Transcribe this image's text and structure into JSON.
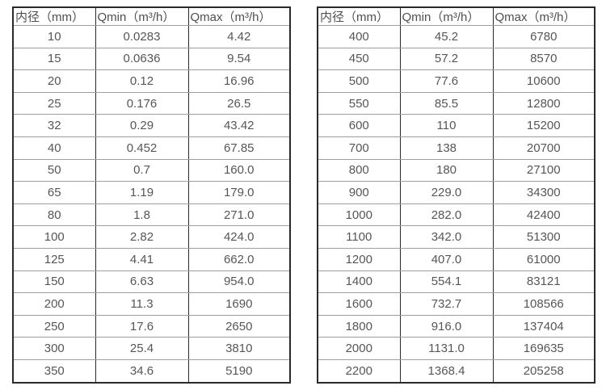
{
  "page": {
    "background": "#ffffff",
    "text_color": "#565656",
    "grid_vertical_color": "#2a2a2a",
    "grid_horizontal_color": "#9e9e9e"
  },
  "columns": [
    "内径（mm）",
    "Qmin（m³/h）",
    "Qmax（m³/h）"
  ],
  "left_table": {
    "rows": [
      [
        "10",
        "0.0283",
        "4.42"
      ],
      [
        "15",
        "0.0636",
        "9.54"
      ],
      [
        "20",
        "0.12",
        "16.96"
      ],
      [
        "25",
        "0.176",
        "26.5"
      ],
      [
        "32",
        "0.29",
        "43.42"
      ],
      [
        "40",
        "0.452",
        "67.85"
      ],
      [
        "50",
        "0.7",
        "160.0"
      ],
      [
        "65",
        "1.19",
        "179.0"
      ],
      [
        "80",
        "1.8",
        "271.0"
      ],
      [
        "100",
        "2.82",
        "424.0"
      ],
      [
        "125",
        "4.41",
        "662.0"
      ],
      [
        "150",
        "6.63",
        "954.0"
      ],
      [
        "200",
        "11.3",
        "1690"
      ],
      [
        "250",
        "17.6",
        "2650"
      ],
      [
        "300",
        "25.4",
        "3810"
      ],
      [
        "350",
        "34.6",
        "5190"
      ]
    ]
  },
  "right_table": {
    "rows": [
      [
        "400",
        "45.2",
        "6780"
      ],
      [
        "450",
        "57.2",
        "8570"
      ],
      [
        "500",
        "77.6",
        "10600"
      ],
      [
        "550",
        "85.5",
        "12800"
      ],
      [
        "600",
        "110",
        "15200"
      ],
      [
        "700",
        "138",
        "20700"
      ],
      [
        "800",
        "180",
        "27100"
      ],
      [
        "900",
        "229.0",
        "34300"
      ],
      [
        "1000",
        "282.0",
        "42400"
      ],
      [
        "1100",
        "342.0",
        "51300"
      ],
      [
        "1200",
        "407.0",
        "61000"
      ],
      [
        "1400",
        "554.1",
        "83121"
      ],
      [
        "1600",
        "732.7",
        "108566"
      ],
      [
        "1800",
        "916.0",
        "137404"
      ],
      [
        "2000",
        "1131.0",
        "169635"
      ],
      [
        "2200",
        "1368.4",
        "205258"
      ]
    ]
  }
}
